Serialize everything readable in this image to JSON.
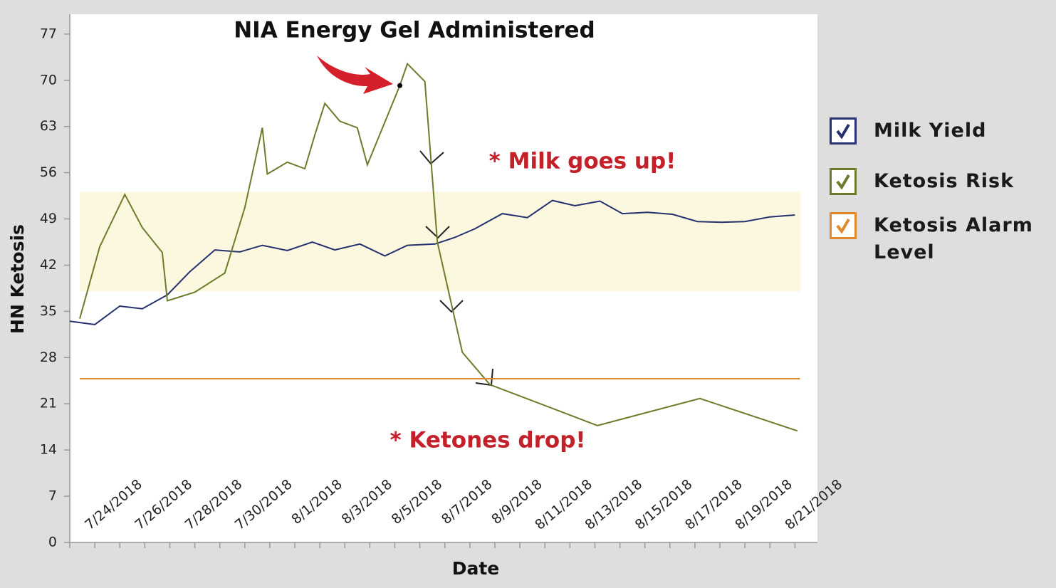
{
  "chart_data": {
    "type": "line",
    "title": "NIA Energy Gel Administered",
    "xlabel": "Date",
    "ylabel": "HN Ketosis",
    "annotations": [
      "* Milk goes up!",
      "* Ketones drop!"
    ],
    "xlim": [
      0,
      29.9
    ],
    "xticks": [
      {
        "value": 1,
        "label": "7/24/2018"
      },
      {
        "value": 3,
        "label": "7/26/2018"
      },
      {
        "value": 5,
        "label": "7/28/2018"
      },
      {
        "value": 7,
        "label": "7/30/2018"
      },
      {
        "value": 9,
        "label": "8/1/2018"
      },
      {
        "value": 11,
        "label": "8/3/2018"
      },
      {
        "value": 13,
        "label": "8/5/2018"
      },
      {
        "value": 15,
        "label": "8/7/2018"
      },
      {
        "value": 17,
        "label": "8/9/2018"
      },
      {
        "value": 19,
        "label": "8/11/2018"
      },
      {
        "value": 21,
        "label": "8/13/2018"
      },
      {
        "value": 23,
        "label": "8/15/2018"
      },
      {
        "value": 25,
        "label": "8/17/2018"
      },
      {
        "value": 27,
        "label": "8/19/2018"
      },
      {
        "value": 29,
        "label": "8/21/2018"
      }
    ],
    "x_minor_ticks": [
      0,
      2,
      4,
      6,
      8,
      10,
      12,
      14,
      16,
      18,
      20,
      22,
      24,
      26,
      28
    ],
    "ylim": [
      0,
      80
    ],
    "yticks": [
      0,
      7,
      14,
      21,
      28,
      35,
      42,
      49,
      56,
      63,
      70,
      77
    ],
    "highlight_band": {
      "x": [
        0.4,
        29.2
      ],
      "y": [
        38,
        53.1
      ],
      "color": "#fcf7df"
    },
    "series": [
      {
        "name": "Milk Yield",
        "color": "#25306e",
        "x": [
          0,
          1,
          2,
          2.9,
          3.9,
          4.8,
          5.8,
          6.8,
          7.7,
          8.7,
          9.7,
          10.6,
          11.6,
          12.6,
          13.5,
          14.6,
          15.4,
          16.2,
          17.3,
          18.3,
          19.3,
          20.2,
          21.2,
          22.1,
          23.1,
          24.1,
          25.1,
          26.1,
          27,
          28,
          29
        ],
        "values": [
          33.5,
          33,
          35.8,
          35.4,
          37.5,
          41,
          44.3,
          44,
          45,
          44.2,
          45.5,
          44.3,
          45.2,
          43.4,
          45,
          45.2,
          46.2,
          47.5,
          49.8,
          49.2,
          51.8,
          51,
          51.7,
          49.8,
          50,
          49.7,
          48.6,
          48.5,
          48.6,
          49.3,
          49.6
        ]
      },
      {
        "name": "Ketosis Risk",
        "color": "#6b7d2a",
        "x": [
          0.4,
          1.2,
          2.2,
          2.9,
          3.7,
          3.9,
          5,
          6.2,
          7,
          7.7,
          7.9,
          8.7,
          9.4,
          9.8,
          10.2,
          10.8,
          11.5,
          11.9,
          13.2,
          13.5,
          14.2,
          14.7,
          15.7,
          16.8,
          21.1,
          25.2,
          29.1
        ],
        "values": [
          33.9,
          44.8,
          52.7,
          47.7,
          43.9,
          36.6,
          37.9,
          40.8,
          50.7,
          62.8,
          55.8,
          57.6,
          56.6,
          61.7,
          66.5,
          63.8,
          62.8,
          57.2,
          69.2,
          72.5,
          69.8,
          45.5,
          28.8,
          23.9,
          17.7,
          21.8,
          16.9
        ]
      },
      {
        "name": "Ketosis Alarm Level",
        "color": "#e0892c",
        "x": [
          0.4,
          29.2
        ],
        "values": [
          24.8,
          24.8
        ]
      }
    ]
  }
}
